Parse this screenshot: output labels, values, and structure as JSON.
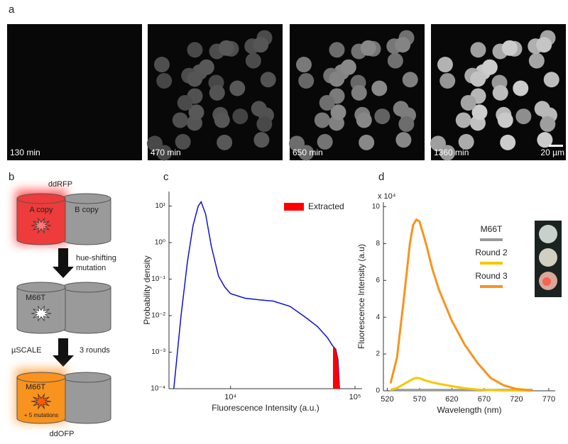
{
  "panels": [
    "a",
    "b",
    "c",
    "d"
  ],
  "images": [
    {
      "label": "130 min"
    },
    {
      "label": "470 min"
    },
    {
      "label": "650 min"
    },
    {
      "label": "1360 min"
    }
  ],
  "scale_bar": "20 µm",
  "diagram": {
    "top_label": "ddRFP",
    "a_copy": "A copy",
    "b_copy": "B copy",
    "step1": [
      "hue-shifting",
      "mutation"
    ],
    "mutant": "M66T",
    "method": "µSCALE",
    "rounds": "3 rounds",
    "final_mutant": "M66T",
    "extra": "+ 5 mutations",
    "bottom_label": "ddOFP"
  },
  "chart_data": [
    {
      "type": "line",
      "xscale": "log",
      "yscale": "log",
      "xlabel": "Fluorescence Intensity (a.u.)",
      "ylabel": "Probability density",
      "xlim": [
        3200,
        114000
      ],
      "ylim": [
        0.0001,
        25
      ],
      "xticks": [
        {
          "value": 10000,
          "label": "10⁴"
        },
        {
          "value": 100000,
          "label": "10⁵"
        }
      ],
      "yticks": [
        {
          "value": 0.0001,
          "label": "10⁻⁴"
        },
        {
          "value": 0.001,
          "label": "10⁻³"
        },
        {
          "value": 0.01,
          "label": "10⁻²"
        },
        {
          "value": 0.1,
          "label": "10⁻¹"
        },
        {
          "value": 1,
          "label": "10⁰"
        },
        {
          "value": 10,
          "label": "10¹"
        }
      ],
      "series": [
        {
          "color": "#1010d0",
          "kind": "line",
          "x": [
            3500,
            4000,
            4500,
            5000,
            5500,
            5800,
            6300,
            7000,
            8000,
            9000,
            10000,
            13000,
            17000,
            22000,
            30000,
            40000,
            50000,
            60000,
            66000,
            70000,
            73000,
            75000
          ],
          "values": [
            0.0001,
            0.01,
            0.3,
            3,
            10,
            13,
            6,
            0.8,
            0.12,
            0.06,
            0.04,
            0.03,
            0.027,
            0.025,
            0.018,
            0.009,
            0.005,
            0.0025,
            0.0015,
            0.0012,
            0.0006,
            0.0001
          ]
        },
        {
          "name": "Extracted",
          "color": "#ff0000",
          "kind": "area",
          "x": [
            66500,
            70000,
            73000,
            75000
          ],
          "values": [
            0.0015,
            0.0012,
            0.0006,
            0.0001
          ]
        }
      ]
    },
    {
      "type": "line",
      "xlabel": "Wavelength (nm)",
      "ylabel": "Fluorescence Intensity (a.u)",
      "y_multiplier": "x 10⁴",
      "xlim": [
        514,
        780
      ],
      "ylim": [
        0,
        10.25
      ],
      "xticks": [
        520,
        570,
        620,
        670,
        720,
        770
      ],
      "yticks": [
        0,
        2,
        4,
        6,
        8,
        10
      ],
      "x": [
        525,
        535,
        545,
        555,
        560,
        565,
        570,
        580,
        590,
        600,
        620,
        640,
        660,
        680,
        700,
        720,
        745
      ],
      "series": [
        {
          "name": "M66T",
          "color": "#999999",
          "values": [
            0.05,
            0.05,
            0.05,
            0.05,
            0.05,
            0.05,
            0.05,
            0.05,
            0.05,
            0.05,
            0.05,
            0.05,
            0.05,
            0.05,
            0.05,
            0.05,
            0.05
          ]
        },
        {
          "name": "Round 2",
          "color": "#f5c800",
          "values": [
            0.05,
            0.15,
            0.35,
            0.55,
            0.65,
            0.7,
            0.68,
            0.55,
            0.45,
            0.38,
            0.25,
            0.14,
            0.07,
            0.04,
            0.02,
            0.01,
            0.01
          ]
        },
        {
          "name": "Round 3",
          "color": "#f7931e",
          "values": [
            0.4,
            1.8,
            4.8,
            8.0,
            9.0,
            9.3,
            9.2,
            8.0,
            6.6,
            5.5,
            3.8,
            2.5,
            1.5,
            0.7,
            0.3,
            0.1,
            0.02
          ]
        }
      ]
    }
  ]
}
